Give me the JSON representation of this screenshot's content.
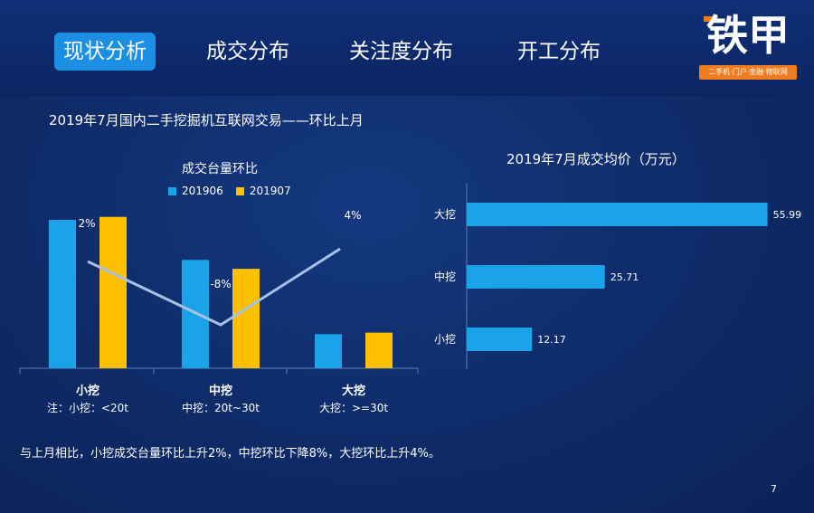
{
  "nav": {
    "tabs": [
      {
        "label": "现状分析",
        "active": true
      },
      {
        "label": "成交分布",
        "active": false
      },
      {
        "label": "关注度分布",
        "active": false
      },
      {
        "label": "开工分布",
        "active": false
      }
    ]
  },
  "logo": {
    "main": "铁甲",
    "sub": "二手机·门户·金融·物联网"
  },
  "section_title": "2019年7月国内二手挖掘机互联网交易——环比上月",
  "note": "与上月相比，小挖成交台量环比上升2%，中挖环比下降8%，大挖环比上升4%。",
  "page_number": "7",
  "colors": {
    "series1": "#1aa3e8",
    "series2": "#ffc000",
    "line": "#a9c1e6",
    "hbar": "#1aa3e8"
  },
  "chart_data": [
    {
      "type": "bar",
      "title": "成交台量环比",
      "categories": [
        "小挖",
        "中挖",
        "大挖"
      ],
      "category_notes": [
        "注：小挖：<20t",
        "中挖：20t~30t",
        "大挖：>=30t"
      ],
      "series": [
        {
          "name": "201906",
          "values": [
            100,
            73,
            23
          ]
        },
        {
          "name": "201907",
          "values": [
            102,
            67,
            24
          ]
        }
      ],
      "line": {
        "labels": [
          "2%",
          "-8%",
          "4%"
        ],
        "values": [
          2,
          -8,
          4
        ]
      }
    },
    {
      "type": "bar",
      "orientation": "horizontal",
      "title": "2019年7月成交均价（万元）",
      "categories": [
        "大挖",
        "中挖",
        "小挖"
      ],
      "values": [
        55.99,
        25.71,
        12.17
      ],
      "value_labels": [
        "55.99",
        "25.71",
        "12.17"
      ]
    }
  ]
}
